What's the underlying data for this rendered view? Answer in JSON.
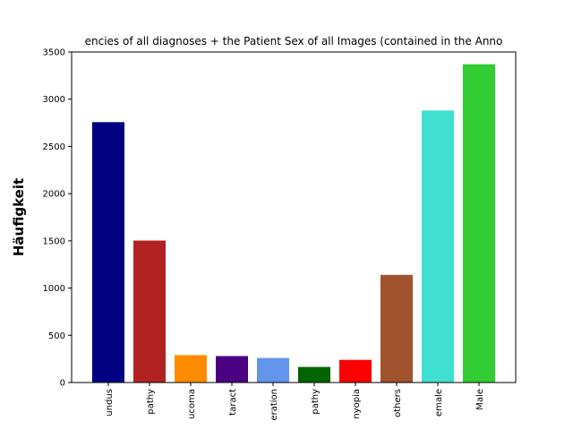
{
  "chart_data": {
    "type": "bar",
    "title": "encies of all diagnoses + the Patient Sex of all Images (contained in the Anno",
    "xlabel": "",
    "ylabel": "Häufigkeit",
    "ylim": [
      0,
      3500
    ],
    "yticks": [
      0,
      500,
      1000,
      1500,
      2000,
      2500,
      3000,
      3500
    ],
    "categories": [
      "undus",
      "pathy",
      "ucoma",
      "taract",
      "eration",
      "pathy",
      "nyopia",
      "others",
      "emale",
      "Male"
    ],
    "values": [
      2757,
      1503,
      290,
      280,
      260,
      165,
      240,
      1140,
      2880,
      3370
    ],
    "colors": [
      "#000080",
      "#B22222",
      "#FF8C00",
      "#4B0082",
      "#6495ED",
      "#006400",
      "#FF0000",
      "#A0522D",
      "#40E0D0",
      "#32CD32"
    ],
    "grid": false,
    "legend": "none"
  }
}
